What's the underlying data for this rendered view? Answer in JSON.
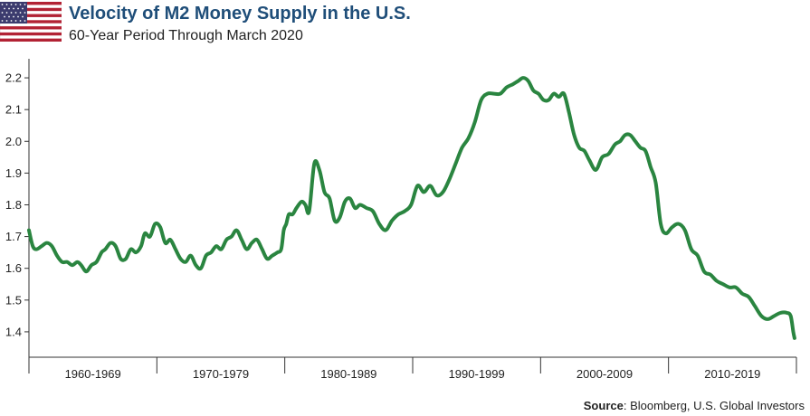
{
  "title": "Velocity of M2 Money Supply in the U.S.",
  "subtitle": "60-Year Period Through March 2020",
  "source_label": "Source",
  "source_text": ": Bloomberg, U.S. Global Investors",
  "flag_icon": "us-flag-icon",
  "colors": {
    "line": "#2a8540",
    "title": "#1f4e79",
    "axis": "#333333"
  },
  "chart_data": {
    "type": "line",
    "title": "Velocity of M2 Money Supply in the U.S.",
    "subtitle": "60-Year Period Through March 2020",
    "xlabel": "",
    "ylabel": "",
    "ylim": [
      1.32,
      2.26
    ],
    "xlim": [
      1960,
      2020.25
    ],
    "y_ticks": [
      1.4,
      1.5,
      1.6,
      1.7,
      1.8,
      1.9,
      2.0,
      2.1,
      2.2
    ],
    "y_tick_labels": [
      "1.4",
      "1.5",
      "1.6",
      "1.7",
      "1.8",
      "1.9",
      "2.0",
      "2.1",
      "2.2"
    ],
    "x_categories": [
      "1960-1969",
      "1970-1979",
      "1980-1989",
      "1990-1999",
      "2000-2009",
      "2010-2019"
    ],
    "grid": false,
    "series": [
      {
        "x": [
          1960.0,
          1960.3,
          1960.6,
          1961.0,
          1961.4,
          1961.8,
          1962.2,
          1962.6,
          1963.0,
          1963.4,
          1963.8,
          1964.1,
          1964.5,
          1964.9,
          1965.3,
          1965.7,
          1966.0,
          1966.4,
          1966.8,
          1967.2,
          1967.6,
          1968.0,
          1968.4,
          1968.8,
          1969.1,
          1969.5,
          1969.9,
          1970.3,
          1970.7,
          1971.1,
          1971.5,
          1971.9,
          1972.3,
          1972.7,
          1973.1,
          1973.5,
          1973.9,
          1974.3,
          1974.7,
          1975.1,
          1975.5,
          1975.9,
          1976.3,
          1976.7,
          1977.1,
          1977.5,
          1977.9,
          1978.3,
          1978.7,
          1979.1,
          1979.5,
          1979.8,
          1980.0,
          1980.2,
          1980.4,
          1980.7,
          1981.0,
          1981.4,
          1981.7,
          1982.0,
          1982.4,
          1982.8,
          1983.2,
          1983.6,
          1984.0,
          1984.4,
          1984.8,
          1985.2,
          1985.6,
          1986.0,
          1986.5,
          1987.0,
          1987.5,
          1988.0,
          1988.5,
          1989.0,
          1989.5,
          1990.0,
          1990.5,
          1991.0,
          1991.5,
          1992.0,
          1992.5,
          1993.0,
          1993.5,
          1994.0,
          1994.5,
          1995.0,
          1995.5,
          1996.0,
          1996.5,
          1997.0,
          1997.5,
          1998.0,
          1998.4,
          1998.8,
          1999.2,
          1999.6,
          2000.0,
          2000.4,
          2000.8,
          2001.2,
          2001.6,
          2002.0,
          2002.4,
          2002.8,
          2003.2,
          2003.6,
          2004.0,
          2004.5,
          2005.0,
          2005.5,
          2006.0,
          2006.4,
          2006.8,
          2007.2,
          2007.6,
          2008.0,
          2008.4,
          2008.8,
          2009.2,
          2009.6,
          2010.0,
          2010.5,
          2011.0,
          2011.5,
          2012.0,
          2012.5,
          2013.0,
          2013.5,
          2014.0,
          2014.5,
          2015.0,
          2015.5,
          2016.0,
          2016.5,
          2017.0,
          2017.5,
          2018.0,
          2018.5,
          2019.0,
          2019.5,
          2019.8,
          2020.0,
          2020.1
        ],
        "y": [
          1.72,
          1.67,
          1.66,
          1.67,
          1.68,
          1.67,
          1.64,
          1.62,
          1.62,
          1.61,
          1.62,
          1.61,
          1.59,
          1.61,
          1.62,
          1.65,
          1.66,
          1.68,
          1.67,
          1.63,
          1.63,
          1.66,
          1.65,
          1.67,
          1.71,
          1.7,
          1.74,
          1.73,
          1.68,
          1.69,
          1.66,
          1.63,
          1.62,
          1.64,
          1.61,
          1.6,
          1.64,
          1.65,
          1.67,
          1.66,
          1.69,
          1.7,
          1.72,
          1.69,
          1.66,
          1.68,
          1.69,
          1.66,
          1.63,
          1.64,
          1.65,
          1.66,
          1.72,
          1.74,
          1.77,
          1.77,
          1.79,
          1.81,
          1.8,
          1.78,
          1.93,
          1.91,
          1.84,
          1.82,
          1.75,
          1.76,
          1.81,
          1.82,
          1.79,
          1.8,
          1.79,
          1.78,
          1.74,
          1.72,
          1.75,
          1.77,
          1.78,
          1.8,
          1.86,
          1.84,
          1.86,
          1.83,
          1.84,
          1.88,
          1.93,
          1.98,
          2.01,
          2.06,
          2.13,
          2.15,
          2.15,
          2.15,
          2.17,
          2.18,
          2.19,
          2.2,
          2.19,
          2.16,
          2.15,
          2.13,
          2.13,
          2.15,
          2.14,
          2.15,
          2.09,
          2.02,
          1.98,
          1.97,
          1.94,
          1.91,
          1.95,
          1.96,
          1.99,
          2.0,
          2.02,
          2.02,
          2.0,
          1.98,
          1.97,
          1.92,
          1.87,
          1.74,
          1.71,
          1.73,
          1.74,
          1.72,
          1.66,
          1.64,
          1.59,
          1.58,
          1.56,
          1.55,
          1.54,
          1.54,
          1.52,
          1.51,
          1.48,
          1.45,
          1.44,
          1.45,
          1.46,
          1.46,
          1.45,
          1.4,
          1.38
        ]
      }
    ]
  }
}
